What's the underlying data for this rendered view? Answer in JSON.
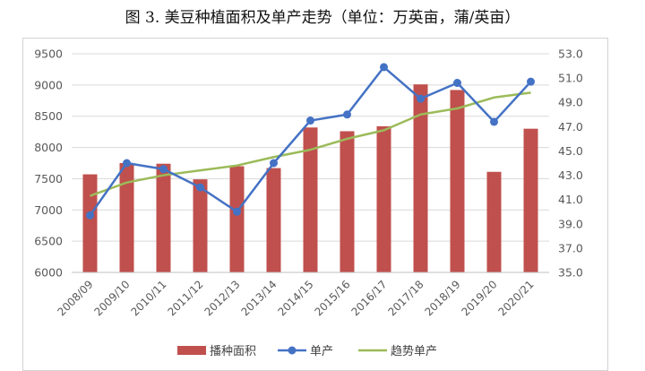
{
  "title": "图 3. 美豆种植面积及单产走势（单位：万英亩，蒲/英亩）",
  "chart_data": {
    "type": "bar",
    "title": "图 3. 美豆种植面积及单产走势（单位：万英亩，蒲/英亩）",
    "categories": [
      "2008/09",
      "2009/10",
      "2010/11",
      "2011/12",
      "2012/13",
      "2013/14",
      "2014/15",
      "2015/16",
      "2016/17",
      "2017/18",
      "2018/19",
      "2019/20",
      "2020/21"
    ],
    "series": [
      {
        "name": "播种面积",
        "type": "bar",
        "axis": "left",
        "values": [
          7570,
          7750,
          7740,
          7490,
          7700,
          7670,
          8320,
          8260,
          8340,
          9010,
          8920,
          7610,
          8300
        ],
        "color": "#c0504d"
      },
      {
        "name": "单产",
        "type": "line",
        "axis": "right",
        "values": [
          39.7,
          44.0,
          43.5,
          42.0,
          40.0,
          44.0,
          47.5,
          48.0,
          51.9,
          49.3,
          50.6,
          47.4,
          50.7
        ],
        "color": "#4472c4"
      },
      {
        "name": "趋势单产",
        "type": "line",
        "axis": "right",
        "values": [
          41.3,
          42.4,
          43.0,
          43.4,
          43.8,
          44.5,
          45.1,
          46.0,
          46.7,
          48.0,
          48.5,
          49.4,
          49.8
        ],
        "color": "#9bbb59"
      }
    ],
    "left_axis": {
      "ylim": [
        6000,
        9500
      ],
      "ticks": [
        "6000",
        "6500",
        "7000",
        "7500",
        "8000",
        "8500",
        "9000",
        "9500"
      ]
    },
    "right_axis": {
      "ylim": [
        35.0,
        53.0
      ],
      "ticks": [
        "35.0",
        "37.0",
        "39.0",
        "41.0",
        "43.0",
        "45.0",
        "47.0",
        "49.0",
        "51.0",
        "53.0"
      ]
    },
    "grid": true,
    "legend_position": "bottom"
  },
  "colors": {
    "grid": "#d9d9d9",
    "axis_text": "#595959"
  }
}
